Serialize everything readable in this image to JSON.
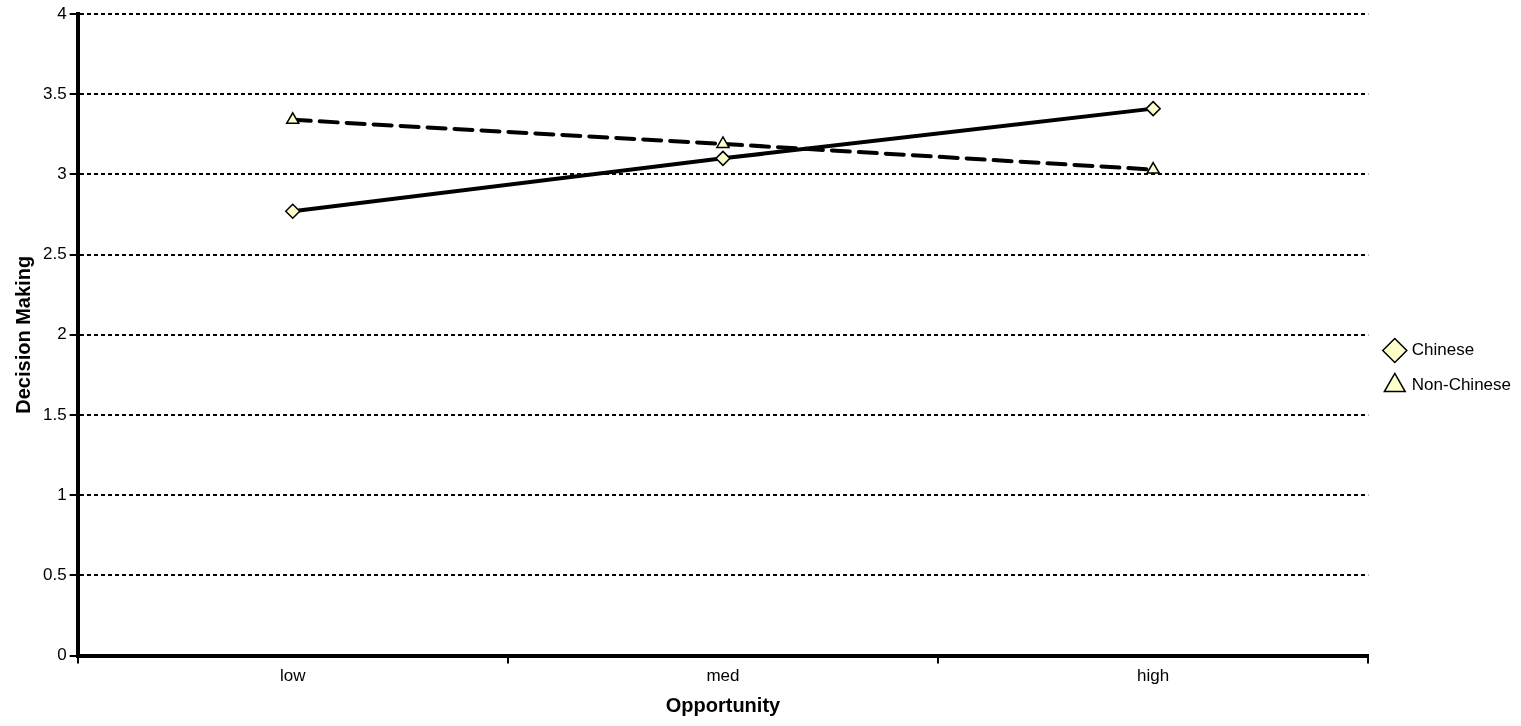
{
  "chart_data": {
    "type": "line",
    "xlabel": "Opportunity",
    "ylabel": "Decision Making",
    "categories": [
      "low",
      "med",
      "high"
    ],
    "series": [
      {
        "name": "Chinese",
        "color": "#000000",
        "values": [
          2.77,
          3.1,
          3.41
        ],
        "marker": "diamond",
        "line_style": "solid"
      },
      {
        "name": "Non-Chinese",
        "color": "#000000",
        "values": [
          3.34,
          3.19,
          3.03
        ],
        "marker": "triangle",
        "line_style": "dashed"
      }
    ],
    "ylim": [
      0,
      4
    ],
    "yticks": [
      0,
      0.5,
      1,
      1.5,
      2,
      2.5,
      3,
      3.5,
      4
    ],
    "grid": "y",
    "legend": "right"
  }
}
